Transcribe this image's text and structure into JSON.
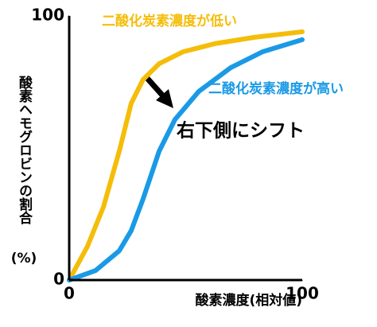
{
  "chart_data": {
    "type": "line",
    "series": [
      {
        "name": "二酸化炭素濃度が低い",
        "color": "#f5bd0a",
        "x": [
          0,
          7.8,
          14.7,
          21.5,
          26.6,
          31.7,
          38.6,
          48.8,
          62.5,
          79.5,
          100
        ],
        "values": [
          0,
          12.7,
          27.7,
          48.8,
          66.9,
          75.9,
          81.9,
          86.4,
          89.5,
          91.9,
          94
        ]
      },
      {
        "name": "二酸化炭素濃度が高い",
        "color": "#1a9ae6",
        "x": [
          0,
          11.3,
          21.5,
          26.6,
          31.7,
          38.6,
          45.4,
          55.6,
          69.3,
          82.9,
          100
        ],
        "values": [
          0,
          3.6,
          11.1,
          18.7,
          30.7,
          48.8,
          60.8,
          71.4,
          80.4,
          86.4,
          91
        ]
      }
    ],
    "xlabel": "酸素濃度(相対値)",
    "ylabel_lines": [
      "酸素ヘモグロビンの割合",
      "(%)"
    ],
    "annotation": "右下側にシフト",
    "xlim": [
      0,
      100
    ],
    "ylim": [
      0,
      100
    ],
    "xticks": [
      0,
      100
    ],
    "yticks": [
      0,
      100
    ],
    "grid": false
  }
}
